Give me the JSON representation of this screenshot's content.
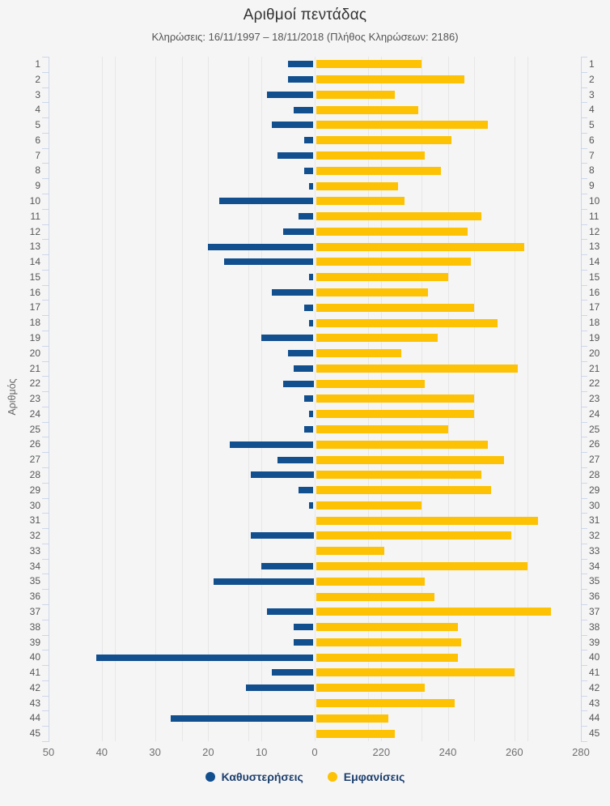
{
  "title": "Αριθμοί πεντάδας",
  "subtitle": "Κληρώσεις: 16/11/1997 – 18/11/2018 (Πλήθος Κληρώσεων: 2186)",
  "y_axis_title": "Αριθμός",
  "colors": {
    "background": "#f5f5f5",
    "delays_bar": "#124f8f",
    "appearances_bar": "#fcc203",
    "gridline": "#e7e7e7",
    "axis_line": "#ccd6eb",
    "legend_text": "#1c3f6e"
  },
  "legend": {
    "items": [
      {
        "label": "Καθυστερήσεις",
        "color": "#124f8f"
      },
      {
        "label": "Εμφανίσεις",
        "color": "#fcc203"
      }
    ]
  },
  "chart_data": {
    "type": "bar",
    "orientation": "horizontal-diverging",
    "title": "Αριθμοί πεντάδας",
    "subtitle": "Κληρώσεις: 16/11/1997 – 18/11/2018 (Πλήθος Κληρώσεων: 2186)",
    "category_axis_title": "Αριθμός",
    "categories": [
      1,
      2,
      3,
      4,
      5,
      6,
      7,
      8,
      9,
      10,
      11,
      12,
      13,
      14,
      15,
      16,
      17,
      18,
      19,
      20,
      21,
      22,
      23,
      24,
      25,
      26,
      27,
      28,
      29,
      30,
      31,
      32,
      33,
      34,
      35,
      36,
      37,
      38,
      39,
      40,
      41,
      42,
      43,
      44,
      45
    ],
    "series": [
      {
        "name": "Καθυστερήσεις",
        "color": "#124f8f",
        "axis": "delays",
        "values": [
          5,
          5,
          9,
          4,
          8,
          2,
          7,
          2,
          1,
          18,
          3,
          6,
          20,
          17,
          1,
          8,
          2,
          1,
          10,
          5,
          4,
          6,
          2,
          1,
          2,
          16,
          7,
          12,
          3,
          1,
          0,
          12,
          0,
          10,
          19,
          0,
          9,
          4,
          4,
          41,
          8,
          13,
          0,
          27,
          0
        ]
      },
      {
        "name": "Εμφανίσεις",
        "color": "#fcc203",
        "axis": "appearances",
        "values": [
          232,
          245,
          224,
          231,
          252,
          241,
          233,
          238,
          225,
          227,
          250,
          246,
          263,
          247,
          240,
          234,
          248,
          255,
          237,
          226,
          261,
          233,
          248,
          248,
          240,
          252,
          257,
          250,
          253,
          232,
          267,
          259,
          221,
          264,
          233,
          236,
          271,
          243,
          244,
          243,
          260,
          233,
          242,
          222,
          224
        ]
      }
    ],
    "axes": {
      "delays": {
        "side": "left-of-center",
        "reversed": true,
        "range": [
          0,
          50
        ],
        "tick_labels": [
          50,
          40,
          30,
          20,
          10,
          0
        ],
        "gridline_values": [
          40,
          30,
          20,
          10,
          0,
          -10,
          -20,
          -30,
          -40
        ]
      },
      "appearances": {
        "side": "right-of-center",
        "baseline": 200,
        "range": [
          200,
          280
        ],
        "tick_labels": [
          220,
          240,
          260,
          280
        ],
        "gridline_values": [
          140,
          160,
          180,
          220,
          240,
          260
        ]
      }
    },
    "legend_position": "bottom",
    "grid": true
  }
}
